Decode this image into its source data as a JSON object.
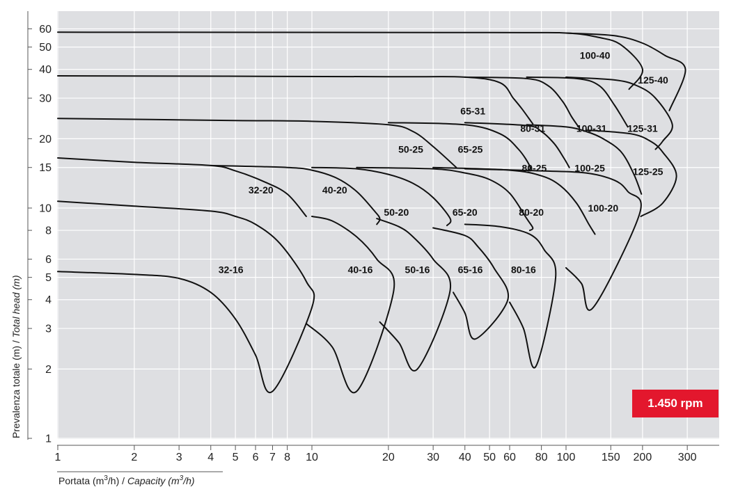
{
  "badge": {
    "text": "1.450 rpm",
    "color": "#e3172d"
  },
  "colors": {
    "plot_bg": "#dedfe2",
    "grid": "#ffffff",
    "curve": "#111111"
  },
  "axis": {
    "x_label_parts": [
      "Portata (m",
      "3",
      "/h) / ",
      "Capacity (m",
      "3",
      "/h)"
    ],
    "y_label_parts": [
      "Prevalenza totale (m) / ",
      "Total head (m)"
    ]
  },
  "chart_data": {
    "type": "line",
    "title": "",
    "xlabel": "Portata (m3/h) / Capacity (m3/h)",
    "ylabel": "Prevalenza totale (m) / Total head (m)",
    "x_scale": "log",
    "y_scale": "log",
    "xlim": [
      1,
      350
    ],
    "ylim": [
      1,
      65
    ],
    "grid": true,
    "x_ticks": [
      1,
      2,
      3,
      4,
      5,
      6,
      7,
      8,
      10,
      20,
      30,
      40,
      50,
      60,
      80,
      100,
      150,
      200,
      300
    ],
    "x_tick_labels": [
      "1",
      "2",
      "3",
      "4",
      "5",
      "6",
      "7",
      "8",
      "10",
      "20",
      "30",
      "40",
      "50",
      "60",
      "80",
      "100",
      "150",
      "200",
      "300"
    ],
    "y_ticks": [
      1,
      2,
      3,
      4,
      5,
      6,
      8,
      10,
      15,
      20,
      30,
      40,
      50,
      60
    ],
    "y_tick_labels": [
      "1",
      "2",
      "3",
      "4",
      "5",
      "6",
      "8",
      "10",
      "15",
      "20",
      "30",
      "40",
      "50",
      "60"
    ],
    "annotation": "1.450 rpm",
    "series": [
      {
        "name": "32-16",
        "label_at": [
          4.8,
          5.4
        ],
        "points": [
          [
            1,
            5.3
          ],
          [
            2,
            5.15
          ],
          [
            3,
            4.95
          ],
          [
            4,
            4.3
          ],
          [
            5,
            3.3
          ],
          [
            6,
            2.3
          ],
          [
            7,
            1.6
          ],
          [
            10,
            3.7
          ],
          [
            9.5,
            4.8
          ],
          [
            7.5,
            7
          ],
          [
            6,
            8.5
          ],
          [
            5,
            9.2
          ],
          [
            4,
            9.7
          ],
          [
            2,
            10.2
          ],
          [
            1,
            10.7
          ]
        ]
      },
      {
        "name": "40-16",
        "label_at": [
          15.5,
          5.4
        ],
        "points": [
          [
            9.5,
            3.15
          ],
          [
            12,
            2.5
          ],
          [
            15,
            1.6
          ],
          [
            21,
            4.4
          ],
          [
            18,
            6
          ],
          [
            15,
            7.5
          ],
          [
            12,
            8.8
          ],
          [
            10,
            9.2
          ]
        ]
      },
      {
        "name": "50-16",
        "label_at": [
          26,
          5.4
        ],
        "points": [
          [
            18.5,
            3.2
          ],
          [
            22,
            2.6
          ],
          [
            26,
            2
          ],
          [
            35,
            4.4
          ],
          [
            30,
            6
          ],
          [
            25,
            7.5
          ],
          [
            22,
            8.3
          ],
          [
            18,
            9
          ]
        ]
      },
      {
        "name": "65-16",
        "label_at": [
          42,
          5.4
        ],
        "points": [
          [
            36,
            4.3
          ],
          [
            40,
            3.5
          ],
          [
            44,
            2.7
          ],
          [
            59,
            4
          ],
          [
            52,
            5.5
          ],
          [
            45,
            6.8
          ],
          [
            40,
            7.6
          ],
          [
            30,
            8.2
          ]
        ]
      },
      {
        "name": "80-16",
        "label_at": [
          68,
          5.4
        ],
        "points": [
          [
            60,
            3.9
          ],
          [
            68,
            3
          ],
          [
            76,
            2.05
          ],
          [
            91,
            5
          ],
          [
            82,
            6.6
          ],
          [
            72,
            7.7
          ],
          [
            55,
            8.3
          ],
          [
            40,
            8.5
          ]
        ]
      },
      {
        "name": "100-20",
        "label_at": [
          140,
          10
        ],
        "points": [
          [
            100,
            5.5
          ],
          [
            115,
            4.7
          ],
          [
            128,
            3.7
          ],
          [
            195,
            9.5
          ],
          [
            175,
            11.8
          ],
          [
            155,
            13.2
          ],
          [
            120,
            14.2
          ],
          [
            80,
            14.5
          ],
          [
            40,
            14.8
          ]
        ]
      },
      {
        "name": "32-20",
        "label_at": [
          6.3,
          12
        ],
        "points": [
          [
            1,
            16.5
          ],
          [
            2,
            15.8
          ],
          [
            4,
            15.3
          ],
          [
            5,
            14.5
          ],
          [
            6.5,
            13
          ],
          [
            8,
            11.5
          ],
          [
            9.5,
            9.2
          ]
        ]
      },
      {
        "name": "40-20",
        "label_at": [
          12.3,
          12
        ],
        "points": [
          [
            4,
            15.3
          ],
          [
            8,
            15
          ],
          [
            10,
            14.6
          ],
          [
            12.5,
            13.5
          ],
          [
            15,
            11.8
          ],
          [
            17.5,
            9.8
          ],
          [
            18.5,
            9
          ],
          [
            18,
            8.5
          ]
        ]
      },
      {
        "name": "50-20",
        "label_at": [
          21.5,
          9.6
        ],
        "points": [
          [
            10,
            15
          ],
          [
            15,
            14.8
          ],
          [
            20,
            14
          ],
          [
            25,
            12.8
          ],
          [
            30,
            11.1
          ],
          [
            35,
            9
          ],
          [
            34,
            8.4
          ]
        ]
      },
      {
        "name": "65-20",
        "label_at": [
          40,
          9.6
        ],
        "points": [
          [
            15,
            15
          ],
          [
            30,
            14.8
          ],
          [
            40,
            14.2
          ],
          [
            50,
            13.3
          ],
          [
            60,
            11.6
          ],
          [
            70,
            9
          ],
          [
            74,
            8.2
          ],
          [
            72,
            8
          ]
        ]
      },
      {
        "name": "80-20",
        "label_at": [
          73,
          9.6
        ],
        "points": [
          [
            30,
            15
          ],
          [
            60,
            14.6
          ],
          [
            80,
            13.8
          ],
          [
            95,
            12.5
          ],
          [
            110,
            10.5
          ],
          [
            123,
            8.5
          ],
          [
            130,
            7.7
          ]
        ]
      },
      {
        "name": "50-25",
        "label_at": [
          24.5,
          18
        ],
        "points": [
          [
            1,
            24.5
          ],
          [
            5,
            24
          ],
          [
            10,
            23.8
          ],
          [
            20,
            23
          ],
          [
            25,
            21.5
          ],
          [
            30,
            18.5
          ],
          [
            37,
            15
          ]
        ]
      },
      {
        "name": "65-25",
        "label_at": [
          42,
          18
        ],
        "points": [
          [
            20,
            23.5
          ],
          [
            40,
            23
          ],
          [
            55,
            21
          ],
          [
            65,
            18
          ],
          [
            72,
            15.2
          ],
          [
            71,
            14.5
          ]
        ]
      },
      {
        "name": "80-25",
        "label_at": [
          75,
          14.9
        ],
        "points": [
          [
            40,
            23.5
          ],
          [
            70,
            22.8
          ],
          [
            80,
            21.5
          ],
          [
            90,
            19
          ],
          [
            98,
            16.5
          ],
          [
            103,
            15
          ]
        ]
      },
      {
        "name": "100-25",
        "label_at": [
          124,
          14.9
        ],
        "points": [
          [
            70,
            23
          ],
          [
            100,
            22.5
          ],
          [
            120,
            21.5
          ],
          [
            140,
            20
          ],
          [
            165,
            17.5
          ],
          [
            185,
            14
          ],
          [
            198,
            11.5
          ]
        ]
      },
      {
        "name": "125-25",
        "label_at": [
          210,
          14.4
        ],
        "points": [
          [
            120,
            21.8
          ],
          [
            180,
            21
          ],
          [
            215,
            19.5
          ],
          [
            240,
            17.5
          ],
          [
            272,
            13.8
          ],
          [
            240,
            10.5
          ],
          [
            197,
            9.2
          ]
        ]
      },
      {
        "name": "65-31",
        "label_at": [
          43,
          26.4
        ],
        "points": [
          [
            1,
            37.5
          ],
          [
            20,
            37.2
          ],
          [
            40,
            37
          ],
          [
            55,
            35
          ],
          [
            62,
            30
          ],
          [
            67,
            27
          ],
          [
            74,
            23.2
          ]
        ]
      },
      {
        "name": "80-31",
        "label_at": [
          74,
          22.2
        ],
        "points": [
          [
            40,
            37
          ],
          [
            70,
            36.5
          ],
          [
            85,
            34
          ],
          [
            97,
            29
          ],
          [
            105,
            25
          ],
          [
            112,
            22.5
          ]
        ]
      },
      {
        "name": "100-31",
        "label_at": [
          126,
          22.2
        ],
        "points": [
          [
            70,
            37
          ],
          [
            110,
            36.5
          ],
          [
            135,
            34
          ],
          [
            155,
            28
          ],
          [
            175,
            22.5
          ]
        ]
      },
      {
        "name": "125-31",
        "label_at": [
          200,
          22.2
        ],
        "points": [
          [
            100,
            37
          ],
          [
            155,
            36
          ],
          [
            190,
            34
          ],
          [
            225,
            30
          ],
          [
            262,
            23
          ],
          [
            240,
            19.5
          ],
          [
            225,
            18
          ]
        ]
      },
      {
        "name": "100-40",
        "label_at": [
          130,
          46
        ],
        "points": [
          [
            1,
            58
          ],
          [
            50,
            57.8
          ],
          [
            100,
            57.5
          ],
          [
            135,
            55
          ],
          [
            165,
            51
          ],
          [
            200,
            40
          ],
          [
            177,
            32.8
          ]
        ]
      },
      {
        "name": "125-40",
        "label_at": [
          220,
          36
        ],
        "points": [
          [
            100,
            57.5
          ],
          [
            155,
            56
          ],
          [
            200,
            52
          ],
          [
            245,
            46
          ],
          [
            295,
            40
          ],
          [
            255,
            26.5
          ]
        ]
      }
    ]
  }
}
